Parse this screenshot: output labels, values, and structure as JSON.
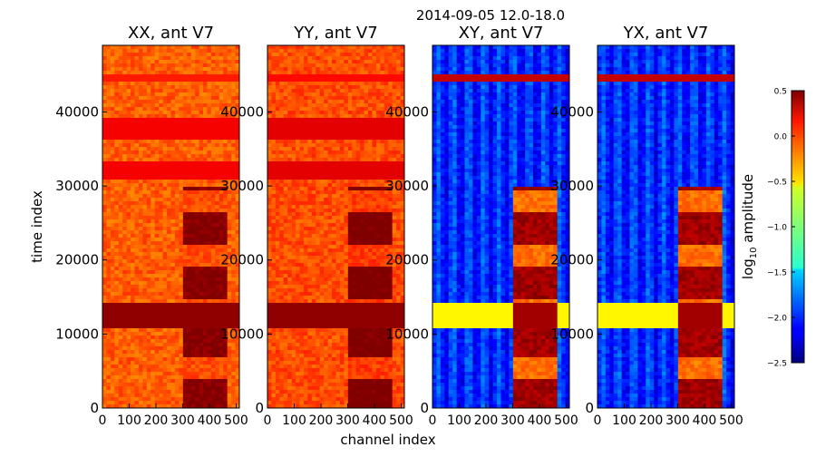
{
  "figure_title": "2014-09-05 12.0-18.0",
  "xlabel": "channel index",
  "ylabel": "time index",
  "colorbar_label": "log",
  "colorbar_label_sub": "10",
  "colorbar_label_rest": " amplitude",
  "colors": {
    "background": "#ffffff",
    "axis": "#000000"
  },
  "chart_data": [
    {
      "type": "heatmap",
      "title": "XX, ant V7",
      "xlim": [
        0,
        512
      ],
      "ylim": [
        0,
        49000
      ],
      "x_ticks": [
        "0",
        "100",
        "200",
        "300",
        "400",
        "500"
      ],
      "y_ticks": [
        "0",
        "10000",
        "20000",
        "30000",
        "40000"
      ],
      "base_level": -0.15,
      "band_level": 0.4
    },
    {
      "type": "heatmap",
      "title": "YY, ant V7",
      "xlim": [
        0,
        512
      ],
      "ylim": [
        0,
        49000
      ],
      "x_ticks": [
        "0",
        "100",
        "200",
        "300",
        "400",
        "500"
      ],
      "y_ticks": [
        "0",
        "10000",
        "20000",
        "30000",
        "40000"
      ],
      "base_level": -0.1,
      "band_level": 0.45
    },
    {
      "type": "heatmap",
      "title": "XY, ant V7",
      "xlim": [
        0,
        512
      ],
      "ylim": [
        0,
        49000
      ],
      "x_ticks": [
        "0",
        "100",
        "200",
        "300",
        "400",
        "500"
      ],
      "y_ticks": [
        "0",
        "10000",
        "20000",
        "30000",
        "40000"
      ],
      "base_level": -2.0,
      "band_level": 0.3
    },
    {
      "type": "heatmap",
      "title": "YX, ant V7",
      "xlim": [
        0,
        512
      ],
      "ylim": [
        0,
        49000
      ],
      "x_ticks": [
        "0",
        "100",
        "200",
        "300",
        "400",
        "500"
      ],
      "y_ticks": [
        "0",
        "10000",
        "20000",
        "30000",
        "40000"
      ],
      "base_level": -2.0,
      "band_level": 0.3
    }
  ],
  "colorbar": {
    "range": [
      -2.5,
      0.5
    ],
    "ticks": [
      "0.5",
      "0.0",
      "−0.5",
      "−1.0",
      "−1.5",
      "−2.0",
      "−2.5"
    ],
    "tick_values": [
      0.5,
      0.0,
      -0.5,
      -1.0,
      -1.5,
      -2.0,
      -2.5
    ]
  }
}
